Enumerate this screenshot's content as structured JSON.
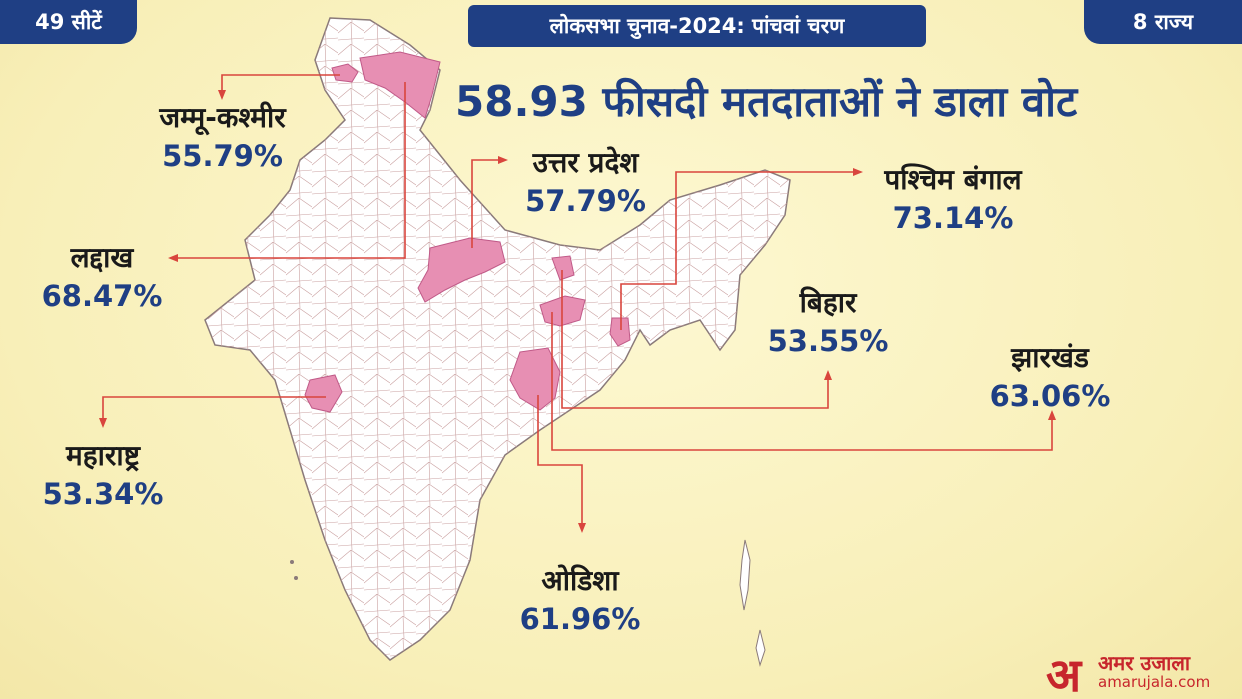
{
  "header": {
    "seats": "49 सीटें",
    "title": "लोकसभा चुनाव-2024: पांचवां चरण",
    "states": "8 राज्य",
    "headline": "58.93 फीसदी मतदाताओं ने डाला वोट"
  },
  "states": [
    {
      "name": "जम्मू-कश्मीर",
      "turnout": "55.79%"
    },
    {
      "name": "उत्तर प्रदेश",
      "turnout": "57.79%"
    },
    {
      "name": "पश्चिम बंगाल",
      "turnout": "73.14%"
    },
    {
      "name": "लद्दाख",
      "turnout": "68.47%"
    },
    {
      "name": "बिहार",
      "turnout": "53.55%"
    },
    {
      "name": "झारखंड",
      "turnout": "63.06%"
    },
    {
      "name": "महाराष्ट्र",
      "turnout": "53.34%"
    },
    {
      "name": "ओडिशा",
      "turnout": "61.96%"
    }
  ],
  "brand": {
    "mark": "अ",
    "name": "अमर उजाला",
    "site": "amarujala.com"
  },
  "colors": {
    "navy": "#1f3f84",
    "highlight": "#e78fb3",
    "leader": "#d9453d",
    "map_fill": "#ffffff",
    "border": "#b58a8a"
  }
}
